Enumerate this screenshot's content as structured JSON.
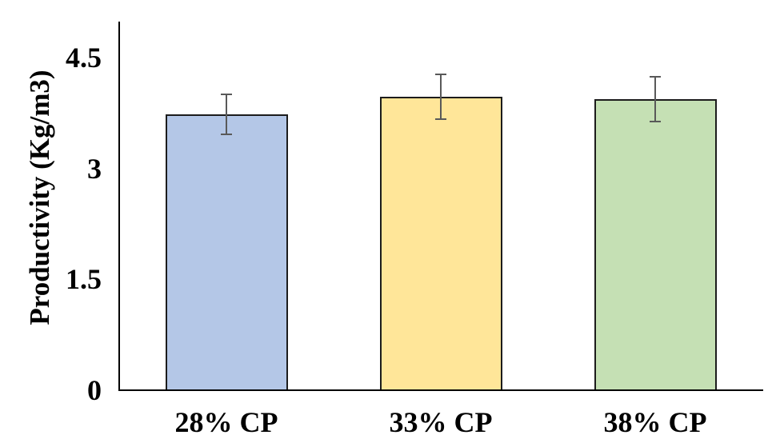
{
  "chart_data": {
    "type": "bar",
    "title": "",
    "xlabel": "",
    "ylabel": "Productivity (Kg/m3)",
    "categories": [
      "28% CP",
      "33% CP",
      "38% CP"
    ],
    "values": [
      3.73,
      3.97,
      3.94
    ],
    "errors": [
      0.27,
      0.3,
      0.3
    ],
    "bar_colors": [
      "#B4C7E7",
      "#FFE699",
      "#C5E0B4"
    ],
    "bar_border_color": "#1c1c1c",
    "error_bar_color": "#595959",
    "axis_color": "#000000",
    "yticks": [
      0,
      1.5,
      3,
      4.5
    ],
    "ytick_labels": [
      "0",
      "1.5",
      "3",
      "4.5"
    ],
    "ylim": [
      0,
      5.0
    ],
    "grid": false,
    "legend": null
  }
}
